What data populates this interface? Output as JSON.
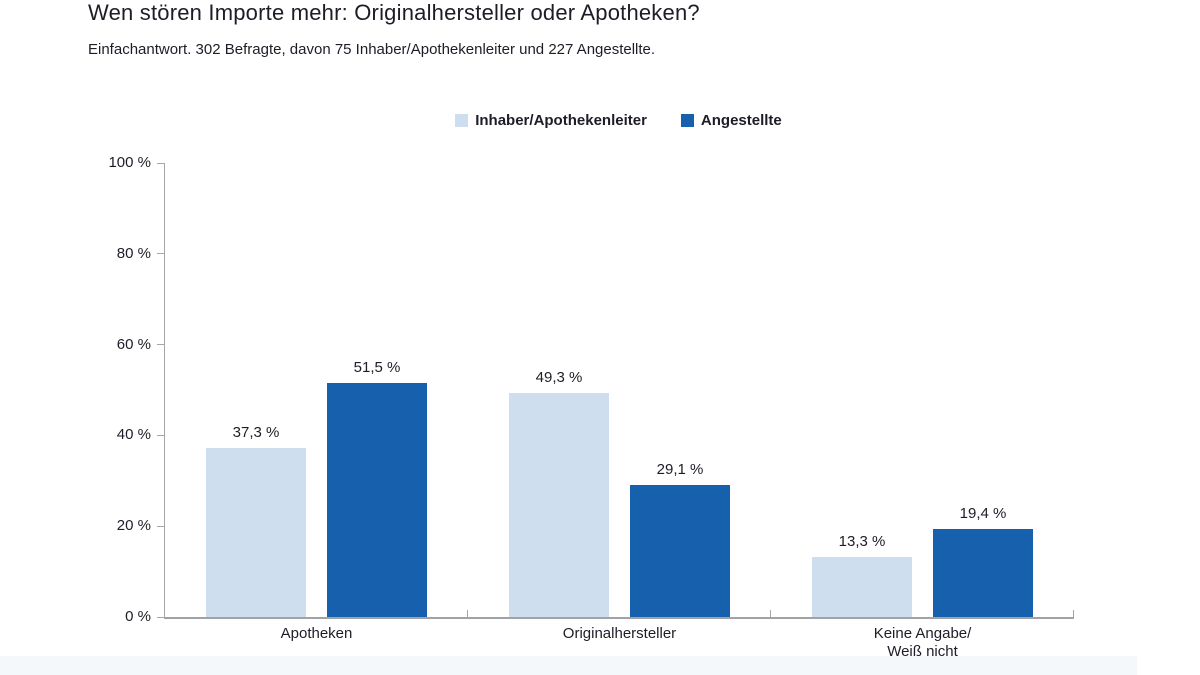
{
  "header": {
    "title": "Wen stören Importe mehr: Originalhersteller oder Apotheken?",
    "subtitle": "Einfachantwort. 302 Befragte, davon 75 Inhaber/Apothekenleiter und 227 Angestellte."
  },
  "chart_data": {
    "type": "bar",
    "title": "Wen stören Importe mehr: Originalhersteller oder Apotheken?",
    "subtitle": "Einfachantwort. 302 Befragte, davon 75 Inhaber/Apothekenleiter und 227 Angestellte.",
    "categories": [
      "Apotheken",
      "Originalhersteller",
      "Keine Angabe/\nWeiß nicht"
    ],
    "series": [
      {
        "name": "Inhaber/Apothekenleiter",
        "color": "#cfdeee",
        "values": [
          37.3,
          49.3,
          13.3
        ],
        "labels": [
          "37,3 %",
          "49,3 %",
          "13,3 %"
        ]
      },
      {
        "name": "Angestellte",
        "color": "#1760ae",
        "values": [
          51.5,
          29.1,
          19.4
        ],
        "labels": [
          "51,5 %",
          "29,1 %",
          "19,4 %"
        ]
      }
    ],
    "y_axis": {
      "min": 0,
      "max": 100,
      "tick_step": 20,
      "tick_labels": [
        "0 %",
        "20 %",
        "40 %",
        "60 %",
        "80 %",
        "100 %"
      ]
    },
    "legend_position": "top-center",
    "grid": false,
    "colors": {
      "axis": "#a6a6a9",
      "text": "#1d1d27",
      "series_light": "#cfdeee",
      "series_dark": "#1760ae"
    }
  }
}
